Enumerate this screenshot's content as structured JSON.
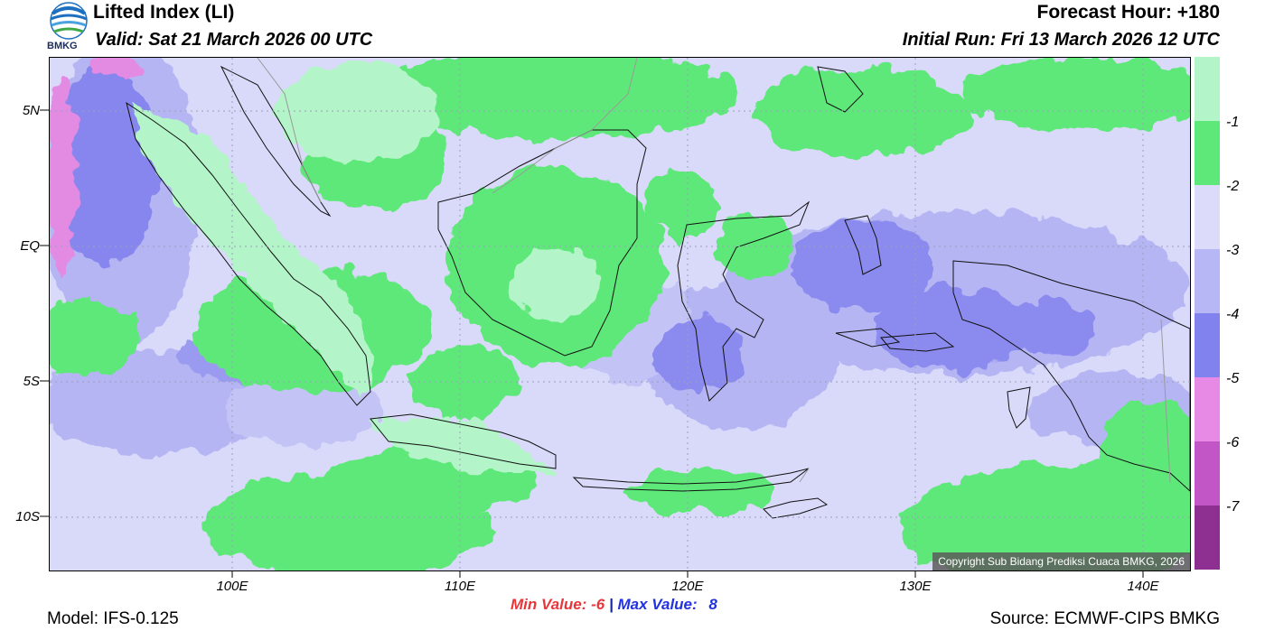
{
  "header": {
    "title": "Lifted Index (LI)",
    "valid": "Valid: Sat 21 March 2026 00 UTC",
    "forecast_hour": "Forecast Hour: +180",
    "initial_run": "Initial Run: Fri 13 March 2026 12 UTC"
  },
  "logo": {
    "text": "BMKG"
  },
  "map": {
    "lat_labels": [
      "5N",
      "EQ",
      "5S",
      "10S"
    ],
    "lon_labels": [
      "100E",
      "110E",
      "120E",
      "130E",
      "140E"
    ],
    "copyright": "Copyright Sub Bidang Prediksi Cuaca BMKG, 2026"
  },
  "colorbar": {
    "labels": [
      "-1",
      "-2",
      "-3",
      "-4",
      "-5",
      "-6",
      "-7"
    ],
    "colors": [
      "#b3f5c8",
      "#5ee87a",
      "#dcdcfa",
      "#b7b7f5",
      "#8282ee",
      "#e68ae6",
      "#c256c6",
      "#8e2f92"
    ]
  },
  "stats": {
    "min_label": "Min Value:",
    "min_value": "-6",
    "separator": "|",
    "max_label": "Max Value:",
    "max_value": "8"
  },
  "footer": {
    "model": "Model: IFS-0.125",
    "source": "Source: ECMWF-CIPS BMKG"
  }
}
